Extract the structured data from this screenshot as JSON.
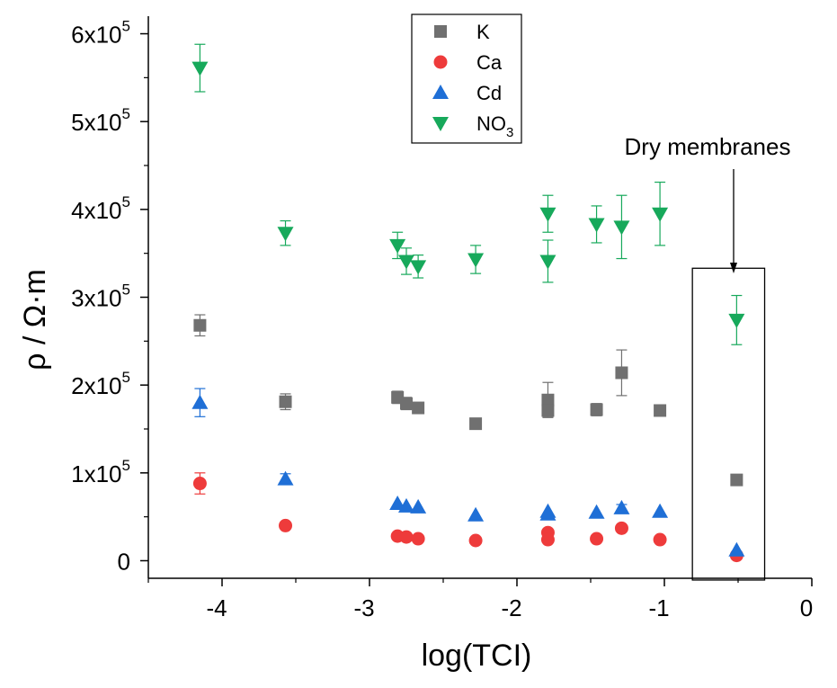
{
  "chart_data": {
    "type": "scatter",
    "xlabel": "log(TCI)",
    "ylabel_parts": [
      "ρ",
      " / Ω·m"
    ],
    "xlim": [
      -4.5,
      0
    ],
    "ylim": [
      -20000,
      620000
    ],
    "x_ticks": [
      -4,
      -3,
      -2,
      -1,
      0
    ],
    "x_tick_labels": [
      "-4",
      "-3",
      "-2",
      "-1",
      "0"
    ],
    "y_ticks": [
      0,
      100000,
      200000,
      300000,
      400000,
      500000,
      600000
    ],
    "y_tick_labels": [
      {
        "base": "0",
        "exp": ""
      },
      {
        "base": "1x10",
        "exp": "5"
      },
      {
        "base": "2x10",
        "exp": "5"
      },
      {
        "base": "3x10",
        "exp": "5"
      },
      {
        "base": "4x10",
        "exp": "5"
      },
      {
        "base": "5x10",
        "exp": "5"
      },
      {
        "base": "6x10",
        "exp": "5"
      }
    ],
    "grid": false,
    "legend_position": "top-center",
    "series": [
      {
        "name": "K",
        "legend_label": {
          "base": "K",
          "sub": ""
        },
        "marker": "square",
        "color": "#707070",
        "points": [
          {
            "x": -4.15,
            "y": 268000,
            "err": 12000
          },
          {
            "x": -3.57,
            "y": 181000,
            "err": 9000
          },
          {
            "x": -2.81,
            "y": 186000,
            "err": 7000
          },
          {
            "x": -2.75,
            "y": 179000,
            "err": 7000
          },
          {
            "x": -2.67,
            "y": 174000,
            "err": 5000
          },
          {
            "x": -2.28,
            "y": 156000,
            "err": 5000
          },
          {
            "x": -1.79,
            "y": 183000,
            "err": 20000
          },
          {
            "x": -1.79,
            "y": 171000,
            "err": 7000
          },
          {
            "x": -1.46,
            "y": 172000,
            "err": 7000
          },
          {
            "x": -1.29,
            "y": 214000,
            "err": 26000
          },
          {
            "x": -1.03,
            "y": 171000,
            "err": 6000
          },
          {
            "x": -0.51,
            "y": 92000,
            "err": 0
          }
        ]
      },
      {
        "name": "Ca",
        "legend_label": {
          "base": "Ca",
          "sub": ""
        },
        "marker": "circle",
        "color": "#ee3b3b",
        "points": [
          {
            "x": -4.15,
            "y": 88000,
            "err": 12000
          },
          {
            "x": -3.57,
            "y": 40000,
            "err": 0
          },
          {
            "x": -2.81,
            "y": 28000,
            "err": 0
          },
          {
            "x": -2.75,
            "y": 27000,
            "err": 0
          },
          {
            "x": -2.67,
            "y": 25000,
            "err": 0
          },
          {
            "x": -2.28,
            "y": 23000,
            "err": 0
          },
          {
            "x": -1.79,
            "y": 32000,
            "err": 0
          },
          {
            "x": -1.79,
            "y": 24000,
            "err": 0
          },
          {
            "x": -1.46,
            "y": 25000,
            "err": 0
          },
          {
            "x": -1.29,
            "y": 37000,
            "err": 0
          },
          {
            "x": -1.03,
            "y": 24000,
            "err": 0
          },
          {
            "x": -0.51,
            "y": 6000,
            "err": 0
          }
        ]
      },
      {
        "name": "Cd",
        "legend_label": {
          "base": "Cd",
          "sub": ""
        },
        "marker": "triangle-up",
        "color": "#1f6fd6",
        "points": [
          {
            "x": -4.15,
            "y": 180000,
            "err": 16000
          },
          {
            "x": -3.57,
            "y": 93000,
            "err": 6000
          },
          {
            "x": -2.81,
            "y": 65000,
            "err": 0
          },
          {
            "x": -2.75,
            "y": 62000,
            "err": 0
          },
          {
            "x": -2.67,
            "y": 61000,
            "err": 0
          },
          {
            "x": -2.28,
            "y": 52000,
            "err": 0
          },
          {
            "x": -1.79,
            "y": 56000,
            "err": 0
          },
          {
            "x": -1.79,
            "y": 53000,
            "err": 0
          },
          {
            "x": -1.46,
            "y": 55000,
            "err": 0
          },
          {
            "x": -1.29,
            "y": 60000,
            "err": 4000
          },
          {
            "x": -1.03,
            "y": 56000,
            "err": 0
          },
          {
            "x": -0.51,
            "y": 12000,
            "err": 0
          }
        ]
      },
      {
        "name": "NO3",
        "legend_label": {
          "base": "NO",
          "sub": "3"
        },
        "marker": "triangle-down",
        "color": "#17a95b",
        "points": [
          {
            "x": -4.15,
            "y": 561000,
            "err": 27000
          },
          {
            "x": -3.57,
            "y": 373000,
            "err": 14000
          },
          {
            "x": -2.81,
            "y": 359000,
            "err": 15000
          },
          {
            "x": -2.75,
            "y": 341000,
            "err": 15000
          },
          {
            "x": -2.67,
            "y": 335000,
            "err": 13000
          },
          {
            "x": -2.28,
            "y": 343000,
            "err": 16000
          },
          {
            "x": -1.79,
            "y": 395000,
            "err": 21000
          },
          {
            "x": -1.79,
            "y": 341000,
            "err": 24000
          },
          {
            "x": -1.46,
            "y": 383000,
            "err": 21000
          },
          {
            "x": -1.29,
            "y": 380000,
            "err": 36000
          },
          {
            "x": -1.03,
            "y": 395000,
            "err": 36000
          },
          {
            "x": -0.51,
            "y": 274000,
            "err": 28000
          }
        ]
      }
    ],
    "annotations": [
      {
        "text": "Dry membranes",
        "box_x": [
          -0.81,
          -0.32
        ],
        "box_y": [
          -22000,
          333000
        ]
      }
    ]
  }
}
